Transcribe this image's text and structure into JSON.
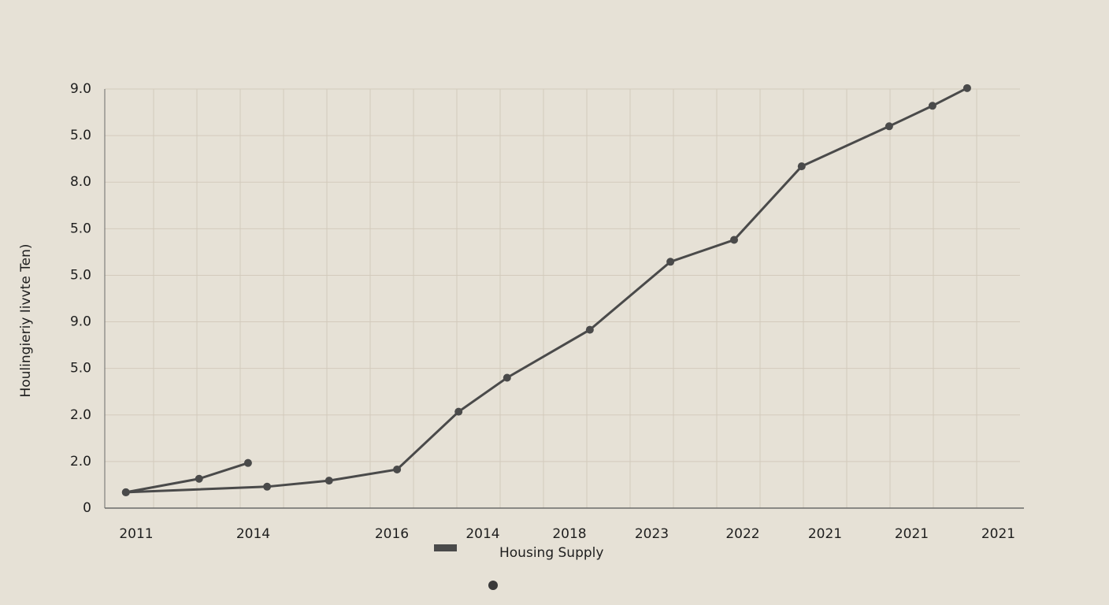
{
  "chart_data": {
    "type": "line",
    "y_label": "Houlingieriy Iivvte Ten)",
    "xlim": [
      0,
      21
    ],
    "xticks": [
      {
        "value": 0.6,
        "label": "2011"
      },
      {
        "value": 3.3,
        "label": "2014"
      },
      {
        "value": 6.5,
        "label": "2016"
      },
      {
        "value": 8.6,
        "label": "2014"
      },
      {
        "value": 10.6,
        "label": "2018"
      },
      {
        "value": 12.5,
        "label": "2023"
      },
      {
        "value": 14.6,
        "label": "2022"
      },
      {
        "value": 16.5,
        "label": "2021"
      },
      {
        "value": 18.5,
        "label": "2021"
      },
      {
        "value": 20.5,
        "label": "2021"
      }
    ],
    "xgrid": [
      1,
      2,
      3,
      4,
      5,
      6,
      7,
      8,
      9,
      10,
      11,
      12,
      13,
      14,
      15,
      16,
      17,
      18,
      19,
      20
    ],
    "ylim": [
      0,
      9
    ],
    "yticks": [
      0,
      {
        "value": 1,
        "label": "2.0"
      },
      {
        "value": 2,
        "label": "2.0"
      },
      {
        "value": 3,
        "label": "5.0"
      },
      {
        "value": 4,
        "label": "9.0"
      },
      {
        "value": 5,
        "label": "5.0"
      },
      {
        "value": 6,
        "label": "5.0"
      },
      {
        "value": 7,
        "label": "8.0"
      },
      {
        "value": 8,
        "label": "5.0"
      },
      {
        "value": 9,
        "label": "9.0"
      }
    ],
    "grid": true,
    "series": [
      {
        "name": "Housing Supply",
        "color": "#4a4a4a",
        "x": [
          0.36,
          3.62,
          5.05,
          6.62,
          8.04,
          9.16,
          11.07,
          12.93,
          14.4,
          15.96,
          17.98,
          18.98,
          19.78
        ],
        "values": [
          0.34,
          0.46,
          0.59,
          0.83,
          2.07,
          2.8,
          3.83,
          5.29,
          5.76,
          7.34,
          8.2,
          8.64,
          9.02
        ]
      },
      {
        "color": "#4a4a4a",
        "x": [
          0.36,
          2.05,
          3.18
        ],
        "values": [
          0.34,
          0.63,
          0.97
        ]
      }
    ]
  }
}
